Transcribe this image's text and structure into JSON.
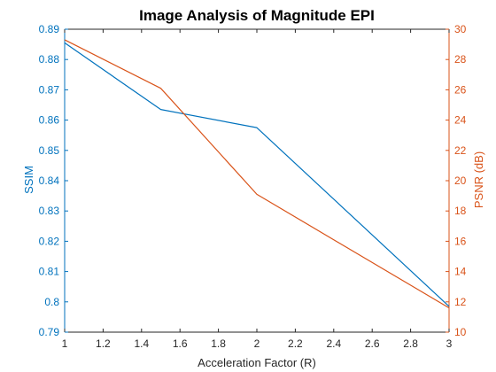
{
  "chart_data": {
    "type": "line",
    "title": "Image Analysis of Magnitude EPI",
    "xlabel": "Acceleration Factor (R)",
    "ylabel_left": "SSIM",
    "ylabel_right": "PSNR (dB)",
    "xlim": [
      1,
      3
    ],
    "ylim_left": [
      0.79,
      0.89
    ],
    "ylim_right": [
      10,
      30
    ],
    "x_ticks": [
      "1",
      "1.2",
      "1.4",
      "1.6",
      "1.8",
      "2",
      "2.2",
      "2.4",
      "2.6",
      "2.8",
      "3"
    ],
    "y_left_ticks": [
      "0.79",
      "0.8",
      "0.81",
      "0.82",
      "0.83",
      "0.84",
      "0.85",
      "0.86",
      "0.87",
      "0.88",
      "0.89"
    ],
    "y_right_ticks": [
      "10",
      "12",
      "14",
      "16",
      "18",
      "20",
      "22",
      "24",
      "26",
      "28",
      "30"
    ],
    "grid": false,
    "colors": {
      "left_axis": "#0072BD",
      "right_axis": "#D95319",
      "frame": "#262626"
    },
    "series": [
      {
        "axis": "left",
        "color": "#0072BD",
        "x": [
          1,
          1.5,
          2,
          3
        ],
        "values": [
          0.8855,
          0.8635,
          0.8575,
          0.7985
        ]
      },
      {
        "axis": "right",
        "color": "#D95319",
        "x": [
          1,
          1.5,
          2,
          3
        ],
        "values": [
          29.3,
          26.1,
          19.1,
          11.6
        ]
      }
    ]
  }
}
